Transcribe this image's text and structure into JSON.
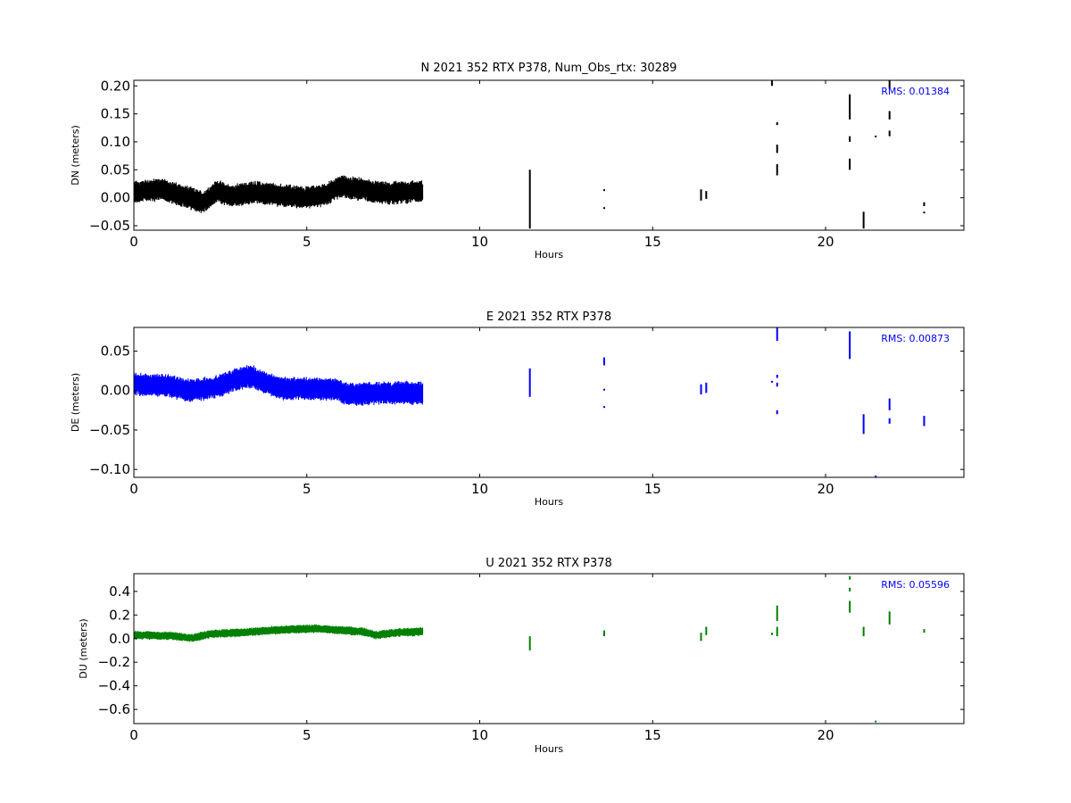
{
  "chart_data": [
    {
      "type": "scatter",
      "title": "N 2021 352 RTX  P378, Num_Obs_rtx: 30289",
      "xlabel": "Hours",
      "ylabel": "DN (meters)",
      "xlim": [
        0,
        24
      ],
      "ylim": [
        -0.058,
        0.21
      ],
      "x_ticks": [
        0,
        5,
        10,
        15,
        20
      ],
      "x_tick_labels": [
        "0",
        "5",
        "10",
        "15",
        "20"
      ],
      "y_ticks": [
        -0.05,
        0.0,
        0.05,
        0.1,
        0.15,
        0.2
      ],
      "y_tick_labels": [
        "−0.05",
        "0.00",
        "0.05",
        "0.10",
        "0.15",
        "0.20"
      ],
      "rms_label": "RMS:  0.01384",
      "color": "#000000",
      "rms_color": "#0000ff",
      "band": {
        "x_start": 0.0,
        "x_end": 8.35,
        "center": [
          [
            0,
            0.01
          ],
          [
            0.8,
            0.015
          ],
          [
            1.6,
            0.0
          ],
          [
            2.0,
            -0.008
          ],
          [
            2.4,
            0.012
          ],
          [
            2.8,
            0.003
          ],
          [
            3.5,
            0.01
          ],
          [
            4.2,
            0.005
          ],
          [
            5.0,
            0.0
          ],
          [
            5.5,
            0.005
          ],
          [
            6.0,
            0.02
          ],
          [
            6.6,
            0.015
          ],
          [
            7.2,
            0.008
          ],
          [
            8.35,
            0.012
          ]
        ],
        "half_width": 0.018
      },
      "segments": [
        {
          "x": 11.45,
          "y0": -0.055,
          "y1": 0.05
        },
        {
          "x": 13.6,
          "y0": -0.02,
          "y1": -0.018
        },
        {
          "x": 13.6,
          "y0": 0.012,
          "y1": 0.015
        },
        {
          "x": 16.4,
          "y0": -0.005,
          "y1": 0.015
        },
        {
          "x": 16.55,
          "y0": -0.002,
          "y1": 0.012
        },
        {
          "x": 18.45,
          "y0": 0.2,
          "y1": 0.21
        },
        {
          "x": 18.6,
          "y0": 0.04,
          "y1": 0.06
        },
        {
          "x": 18.6,
          "y0": 0.08,
          "y1": 0.095
        },
        {
          "x": 18.6,
          "y0": 0.13,
          "y1": 0.135
        },
        {
          "x": 20.7,
          "y0": 0.05,
          "y1": 0.07
        },
        {
          "x": 20.7,
          "y0": 0.1,
          "y1": 0.11
        },
        {
          "x": 20.7,
          "y0": 0.14,
          "y1": 0.185
        },
        {
          "x": 21.1,
          "y0": -0.055,
          "y1": -0.025
        },
        {
          "x": 21.45,
          "y0": 0.108,
          "y1": 0.11
        },
        {
          "x": 21.85,
          "y0": 0.11,
          "y1": 0.12
        },
        {
          "x": 21.85,
          "y0": 0.14,
          "y1": 0.155
        },
        {
          "x": 21.85,
          "y0": 0.195,
          "y1": 0.21
        },
        {
          "x": 22.85,
          "y0": -0.028,
          "y1": -0.025
        },
        {
          "x": 22.85,
          "y0": -0.015,
          "y1": -0.008
        }
      ]
    },
    {
      "type": "scatter",
      "title": "E 2021 352 RTX  P378",
      "xlabel": "Hours",
      "ylabel": "DE (meters)",
      "xlim": [
        0,
        24
      ],
      "ylim": [
        -0.11,
        0.08
      ],
      "x_ticks": [
        0,
        5,
        10,
        15,
        20
      ],
      "x_tick_labels": [
        "0",
        "5",
        "10",
        "15",
        "20"
      ],
      "y_ticks": [
        -0.1,
        -0.05,
        0.0,
        0.05
      ],
      "y_tick_labels": [
        "−0.10",
        "−0.05",
        "0.00",
        "0.05"
      ],
      "rms_label": "RMS:  0.00873",
      "color": "#0000ff",
      "rms_color": "#0000ff",
      "band": {
        "x_start": 0.0,
        "x_end": 8.35,
        "center": [
          [
            0,
            0.008
          ],
          [
            1.0,
            0.006
          ],
          [
            1.6,
            0.0
          ],
          [
            2.2,
            0.003
          ],
          [
            2.6,
            0.008
          ],
          [
            3.0,
            0.015
          ],
          [
            3.4,
            0.018
          ],
          [
            3.7,
            0.012
          ],
          [
            4.2,
            0.003
          ],
          [
            5.0,
            0.002
          ],
          [
            5.8,
            0.002
          ],
          [
            6.2,
            -0.005
          ],
          [
            7.0,
            -0.003
          ],
          [
            8.35,
            -0.003
          ]
        ],
        "half_width": 0.013
      },
      "segments": [
        {
          "x": 11.45,
          "y0": -0.008,
          "y1": 0.028
        },
        {
          "x": 13.6,
          "y0": -0.022,
          "y1": -0.02
        },
        {
          "x": 13.6,
          "y0": 0.0,
          "y1": 0.002
        },
        {
          "x": 13.6,
          "y0": 0.032,
          "y1": 0.042
        },
        {
          "x": 16.4,
          "y0": -0.005,
          "y1": 0.008
        },
        {
          "x": 16.55,
          "y0": -0.003,
          "y1": 0.01
        },
        {
          "x": 18.45,
          "y0": 0.01,
          "y1": 0.012
        },
        {
          "x": 18.6,
          "y0": -0.03,
          "y1": -0.025
        },
        {
          "x": 18.6,
          "y0": 0.005,
          "y1": 0.01
        },
        {
          "x": 18.6,
          "y0": 0.016,
          "y1": 0.02
        },
        {
          "x": 18.6,
          "y0": 0.063,
          "y1": 0.08
        },
        {
          "x": 20.7,
          "y0": 0.04,
          "y1": 0.075
        },
        {
          "x": 21.1,
          "y0": -0.055,
          "y1": -0.03
        },
        {
          "x": 21.45,
          "y0": -0.11,
          "y1": -0.108
        },
        {
          "x": 21.85,
          "y0": -0.042,
          "y1": -0.035
        },
        {
          "x": 21.85,
          "y0": -0.025,
          "y1": -0.01
        },
        {
          "x": 22.85,
          "y0": -0.045,
          "y1": -0.032
        }
      ]
    },
    {
      "type": "scatter",
      "title": "U 2021 352 RTX  P378",
      "xlabel": "Hours",
      "ylabel": "DU (meters)",
      "xlim": [
        0,
        24
      ],
      "ylim": [
        -0.72,
        0.55
      ],
      "x_ticks": [
        0,
        5,
        10,
        15,
        20
      ],
      "x_tick_labels": [
        "0",
        "5",
        "10",
        "15",
        "20"
      ],
      "y_ticks": [
        -0.6,
        -0.4,
        -0.2,
        0.0,
        0.2,
        0.4
      ],
      "y_tick_labels": [
        "−0.6",
        "−0.4",
        "−0.2",
        "0.0",
        "0.2",
        "0.4"
      ],
      "rms_label": "RMS:  0.05596",
      "color": "#008000",
      "rms_color": "#0000ff",
      "band": {
        "x_start": 0.0,
        "x_end": 8.35,
        "center": [
          [
            0,
            0.03
          ],
          [
            1.0,
            0.025
          ],
          [
            1.7,
            0.005
          ],
          [
            2.2,
            0.04
          ],
          [
            3.0,
            0.05
          ],
          [
            4.0,
            0.07
          ],
          [
            5.2,
            0.085
          ],
          [
            6.0,
            0.07
          ],
          [
            6.6,
            0.06
          ],
          [
            7.0,
            0.03
          ],
          [
            7.6,
            0.05
          ],
          [
            8.35,
            0.06
          ]
        ],
        "half_width": 0.032
      },
      "segments": [
        {
          "x": 11.45,
          "y0": -0.1,
          "y1": 0.02
        },
        {
          "x": 13.6,
          "y0": 0.02,
          "y1": 0.07
        },
        {
          "x": 16.4,
          "y0": -0.02,
          "y1": 0.05
        },
        {
          "x": 16.55,
          "y0": 0.03,
          "y1": 0.1
        },
        {
          "x": 18.45,
          "y0": 0.03,
          "y1": 0.05
        },
        {
          "x": 18.6,
          "y0": 0.02,
          "y1": 0.1
        },
        {
          "x": 18.6,
          "y0": 0.15,
          "y1": 0.28
        },
        {
          "x": 20.7,
          "y0": 0.22,
          "y1": 0.32
        },
        {
          "x": 20.7,
          "y0": 0.4,
          "y1": 0.43
        },
        {
          "x": 20.7,
          "y0": 0.5,
          "y1": 0.53
        },
        {
          "x": 21.1,
          "y0": 0.02,
          "y1": 0.1
        },
        {
          "x": 21.45,
          "y0": -0.71,
          "y1": -0.7
        },
        {
          "x": 21.85,
          "y0": 0.12,
          "y1": 0.23
        },
        {
          "x": 22.85,
          "y0": 0.05,
          "y1": 0.08
        }
      ]
    }
  ]
}
